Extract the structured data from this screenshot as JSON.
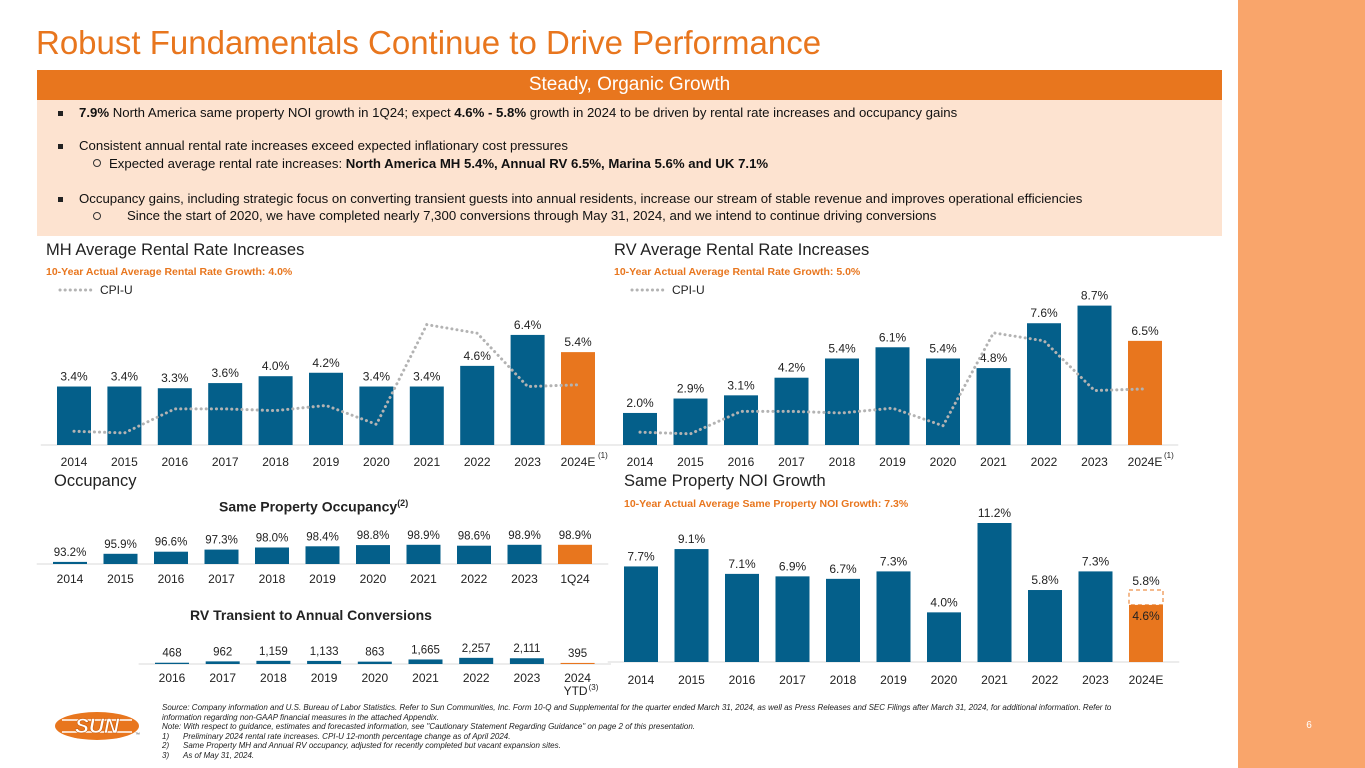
{
  "title": "Robust Fundamentals Continue to Drive Performance",
  "banner": "Steady, Organic Growth",
  "page_number": "6",
  "bullets": {
    "b1_bold1": "7.9%",
    "b1_text1": " North America same property NOI growth in 1Q24; expect ",
    "b1_bold2": "4.6% - 5.8%",
    "b1_text2": " growth in 2024 to be driven by rental rate increases and occupancy gains",
    "b2": "Consistent annual rental rate increases exceed expected inflationary cost pressures",
    "b2_sub_text": "Expected average rental rate increases:  ",
    "b2_sub_bold": "North America MH 5.4%, Annual RV 6.5%, Marina 5.6% and UK 7.1%",
    "b3": "Occupancy gains, including strategic focus on converting transient guests into annual residents, increase our stream of stable revenue and improves operational efficiencies",
    "b3_sub": "Since the start of 2020, we have completed nearly 7,300 conversions through May 31, 2024, and we intend to continue driving conversions"
  },
  "sections": {
    "mh": "MH Average Rental Rate Increases",
    "rv": "RV Average Rental Rate Increases",
    "occ": "Occupancy",
    "noi": "Same Property NOI Growth"
  },
  "chart_data": [
    {
      "id": "mh",
      "type": "bar",
      "title": "MH Average Rental Rate Increases",
      "subtitle": "10-Year Actual Average Rental Rate Growth: 4.0%",
      "legend": "CPI-U",
      "categories": [
        "2014",
        "2015",
        "2016",
        "2017",
        "2018",
        "2019",
        "2020",
        "2021",
        "2022",
        "2023",
        "2024E"
      ],
      "values": [
        3.4,
        3.4,
        3.3,
        3.6,
        4.0,
        4.2,
        3.4,
        3.4,
        4.6,
        6.4,
        5.4
      ],
      "labels": [
        "3.4%",
        "3.4%",
        "3.3%",
        "3.6%",
        "4.0%",
        "4.2%",
        "3.4%",
        "3.4%",
        "4.6%",
        "6.4%",
        "5.4%"
      ],
      "cpi_u": [
        0.8,
        0.7,
        2.1,
        2.1,
        2.0,
        2.3,
        1.2,
        7.0,
        6.5,
        3.4,
        3.5
      ],
      "ylim": [
        0,
        7.5
      ],
      "footnote_mark": "(1)",
      "highlight_index": 10
    },
    {
      "id": "rv",
      "type": "bar",
      "title": "RV Average Rental Rate Increases",
      "subtitle": "10-Year Actual Average Rental Rate Growth: 5.0%",
      "legend": "CPI-U",
      "categories": [
        "2014",
        "2015",
        "2016",
        "2017",
        "2018",
        "2019",
        "2020",
        "2021",
        "2022",
        "2023",
        "2024E"
      ],
      "values": [
        2.0,
        2.9,
        3.1,
        4.2,
        5.4,
        6.1,
        5.4,
        4.8,
        7.6,
        8.7,
        6.5
      ],
      "labels": [
        "2.0%",
        "2.9%",
        "3.1%",
        "4.2%",
        "5.4%",
        "6.1%",
        "5.4%",
        "4.8%",
        "7.6%",
        "8.7%",
        "6.5%"
      ],
      "cpi_u": [
        0.8,
        0.7,
        2.1,
        2.1,
        2.0,
        2.3,
        1.2,
        7.0,
        6.5,
        3.4,
        3.5
      ],
      "ylim": [
        0,
        9.3
      ],
      "footnote_mark": "(1)",
      "highlight_index": 10
    },
    {
      "id": "occ",
      "type": "bar",
      "title": "Same Property Occupancy",
      "title_sup": "(2)",
      "categories": [
        "2014",
        "2015",
        "2016",
        "2017",
        "2018",
        "2019",
        "2020",
        "2021",
        "2022",
        "2023",
        "1Q24"
      ],
      "values": [
        93.2,
        95.9,
        96.6,
        97.3,
        98.0,
        98.4,
        98.8,
        98.9,
        98.6,
        98.9,
        98.9
      ],
      "labels": [
        "93.2%",
        "95.9%",
        "96.6%",
        "97.3%",
        "98.0%",
        "98.4%",
        "98.8%",
        "98.9%",
        "98.6%",
        "98.9%",
        "98.9%"
      ],
      "ylim": [
        92.5,
        99.5
      ],
      "highlight_index": 10
    },
    {
      "id": "conv",
      "type": "bar",
      "title": "RV Transient to Annual Conversions",
      "categories": [
        "2016",
        "2017",
        "2018",
        "2019",
        "2020",
        "2021",
        "2022",
        "2023",
        "2024"
      ],
      "category_sub": "YTD",
      "category_sub_mark": "(3)",
      "values": [
        468,
        962,
        1159,
        1133,
        863,
        1665,
        2257,
        2111,
        395
      ],
      "labels": [
        "468",
        "962",
        "1,159",
        "1,133",
        "863",
        "1,665",
        "2,257",
        "2,111",
        "395"
      ],
      "ylim": [
        0,
        5500
      ],
      "highlight_index": 8
    },
    {
      "id": "noi",
      "type": "bar",
      "title": "Same Property NOI Growth",
      "subtitle": "10-Year Actual Average Same Property NOI Growth: 7.3%",
      "categories": [
        "2014",
        "2015",
        "2016",
        "2017",
        "2018",
        "2019",
        "2020",
        "2021",
        "2022",
        "2023",
        "2024E"
      ],
      "values": [
        7.7,
        9.1,
        7.1,
        6.9,
        6.7,
        7.3,
        4.0,
        11.2,
        5.8,
        7.3,
        4.6
      ],
      "labels": [
        "7.7%",
        "9.1%",
        "7.1%",
        "6.9%",
        "6.7%",
        "7.3%",
        "4.0%",
        "11.2%",
        "5.8%",
        "7.3%",
        "4.6%"
      ],
      "range_top": 5.8,
      "range_top_label": "5.8%",
      "ylim": [
        0,
        11.2
      ],
      "highlight_index": 10
    }
  ],
  "logo": {
    "text": "SUN",
    "tm": "™"
  },
  "footnotes": {
    "source": "Source: Company information and U.S. Bureau of Labor Statistics. Refer to Sun Communities, Inc. Form 10-Q and Supplemental for the quarter ended March 31, 2024, as well as Press Releases and SEC Filings after March 31, 2024, for additional information. Refer to",
    "source2": "information regarding non-GAAP financial measures in the attached Appendix.",
    "note": "Note: With respect to guidance, estimates and forecasted information, see \"Cautionary Statement Regarding Guidance\" on page 2 of this presentation.",
    "f1n": "1)",
    "f1": "Preliminary 2024 rental rate increases. CPI-U 12-month percentage change as of April 2024.",
    "f2n": "2)",
    "f2": "Same Property MH and Annual RV occupancy, adjusted for recently completed but vacant expansion sites.",
    "f3n": "3)",
    "f3": "As of May 31, 2024."
  },
  "colors": {
    "orange": "#e8761e",
    "blue": "#045f8a",
    "cpi": "#b3b3b3",
    "band": "#f9a56b"
  }
}
